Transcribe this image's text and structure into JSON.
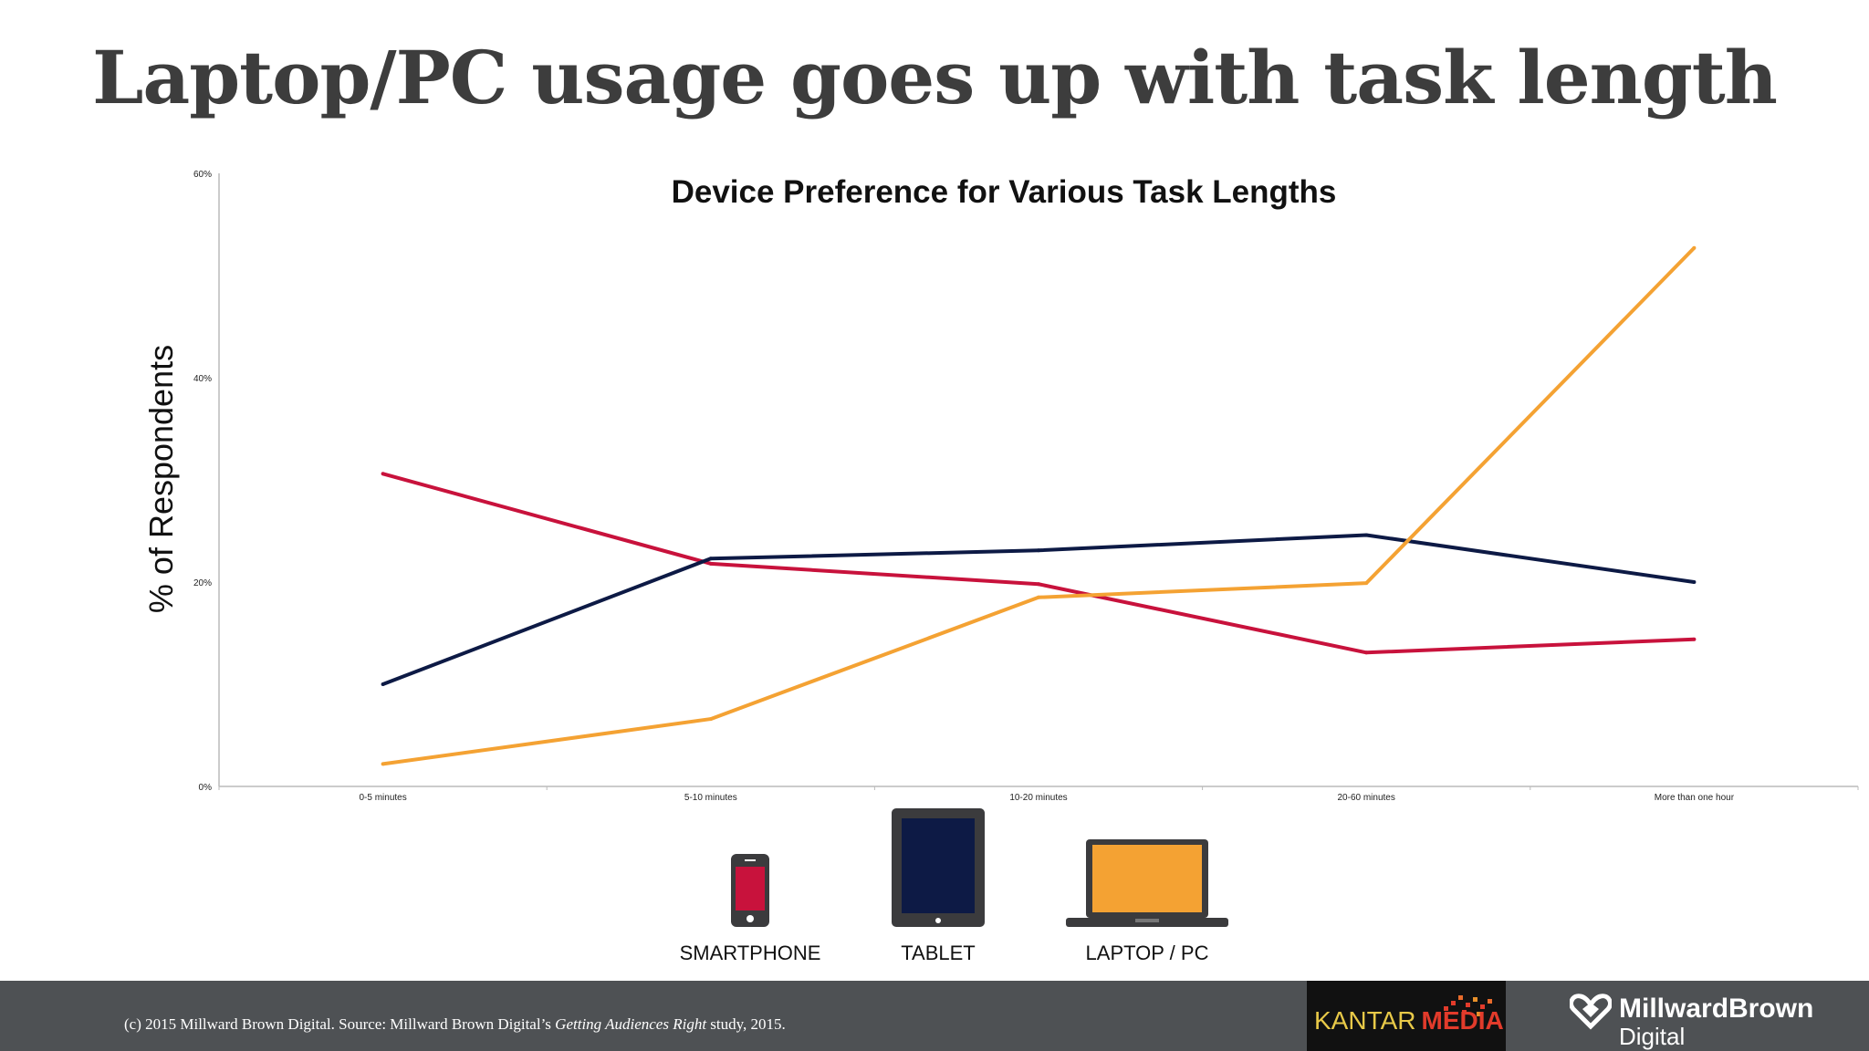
{
  "slide": {
    "title": "Laptop/PC usage goes up with task length"
  },
  "chart_data": {
    "type": "line",
    "title": "Device Preference for Various Task Lengths",
    "ylabel": "% of Respondents",
    "xlabel": "",
    "categories": [
      "0-5 minutes",
      "5-10 minutes",
      "10-20 minutes",
      "20-60 minutes",
      "More than one hour"
    ],
    "ylim": [
      0,
      60
    ],
    "yticks": [
      0,
      20,
      40,
      60
    ],
    "ytick_labels": [
      "0%",
      "20%",
      "40%",
      "60%"
    ],
    "grid": false,
    "legend_placement": "bottom",
    "series": [
      {
        "key": "smartphone",
        "color": "#c8123c",
        "values": [
          30.6,
          21.8,
          19.8,
          13.1,
          14.4
        ]
      },
      {
        "key": "tablet",
        "color": "#0d1a45",
        "values": [
          10.0,
          22.3,
          23.1,
          24.6,
          20.0
        ]
      },
      {
        "key": "laptop",
        "color": "#f4a233",
        "values": [
          2.2,
          6.6,
          18.5,
          19.9,
          52.7
        ]
      }
    ]
  },
  "legend": {
    "items": [
      {
        "label": "SMARTPHONE",
        "icon": "smartphone-icon",
        "color": "#c8123c"
      },
      {
        "label": "TABLET",
        "icon": "tablet-icon",
        "color": "#0d1a45"
      },
      {
        "label": "LAPTOP / PC",
        "icon": "laptop-icon",
        "color": "#f4a233"
      }
    ]
  },
  "footer": {
    "copyright_prefix": "(c) 2015 Millward Brown Digital. Source: Millward Brown Digital’s ",
    "study_name": "Getting Audiences Right",
    "copyright_suffix": " study, 2015.",
    "kantar_word1": "KANTAR",
    "kantar_word2": "MEDIA",
    "mbd_line1": "MillwardBrown",
    "mbd_line2": "Digital"
  }
}
